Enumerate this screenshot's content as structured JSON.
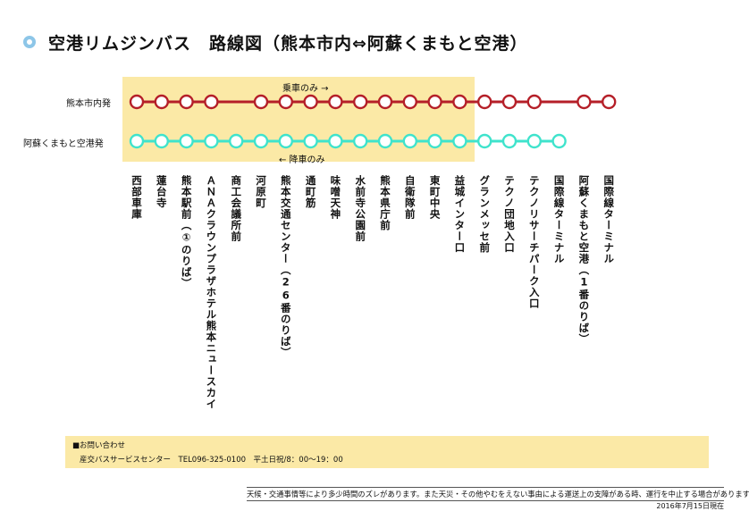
{
  "title": "空港リムジンバス　路線図（熊本市内⇔阿蘇くまもと空港）",
  "colors": {
    "red": "#b51f28",
    "teal": "#3fe3cc",
    "highlight": "#fbe9a6",
    "title_ring": "#8dc6e8"
  },
  "routes": [
    {
      "label": "熊本市内発",
      "note": "乗車のみ →",
      "color": "#b51f28",
      "stops": [
        1,
        1,
        1,
        1,
        0,
        1,
        1,
        1,
        1,
        1,
        1,
        1,
        1,
        1,
        1,
        1,
        1,
        0,
        1,
        1
      ]
    },
    {
      "label": "阿蘇くまもと空港発",
      "note": "← 降車のみ",
      "color": "#3fe3cc",
      "stops": [
        1,
        1,
        1,
        1,
        1,
        1,
        1,
        1,
        1,
        1,
        1,
        1,
        1,
        1,
        1,
        1,
        1,
        1,
        0,
        0
      ]
    }
  ],
  "stops": [
    "西部車庫",
    "蓮台寺",
    "熊本駅前（①のりば）",
    "ＡＮＡクラウンプラザホテル熊本ニュースカイ",
    "商工会議所前",
    "河原町",
    "熊本交通センター（26番のりば）",
    "通町筋",
    "味噌天神",
    "水前寺公園前",
    "熊本県庁前",
    "自衛隊前",
    "東町中央",
    "益城インター口",
    "グランメッセ前",
    "テクノ団地入口",
    "テクノリサーチパーク入口",
    "国際線ターミナル",
    "阿蘇くまもと空港（1番のりば）",
    "国際線ターミナル"
  ],
  "info": {
    "title": "■お問い合わせ",
    "line": "産交バスサービスセンター　TEL096-325-0100　平土日祝/8：00〜19：00"
  },
  "notice": "天候・交通事情等により多少時間のズレがあります。また天災・その他やむをえない事由による運送上の支障がある時、運行を中止する場合があります。",
  "date": "2016年7月15日現在"
}
